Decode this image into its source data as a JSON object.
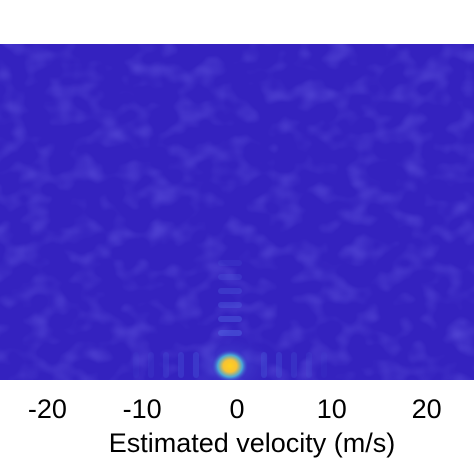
{
  "chart_data": {
    "type": "heatmap",
    "title": "",
    "xlabel": "Estimated velocity (m/s)",
    "ylabel": "",
    "xlim": [
      -25,
      25
    ],
    "x_ticks": [
      -20,
      -10,
      0,
      10,
      20
    ],
    "x_tick_labels": [
      "-20",
      "-10",
      "0",
      "10",
      "20"
    ],
    "grid": false,
    "colormap": [
      "#3a24c4",
      "#2e6ef0",
      "#1fbfb0",
      "#ffd21e"
    ],
    "background_color": "#3422bf",
    "peak": {
      "x": 0,
      "level": 1.0
    }
  }
}
